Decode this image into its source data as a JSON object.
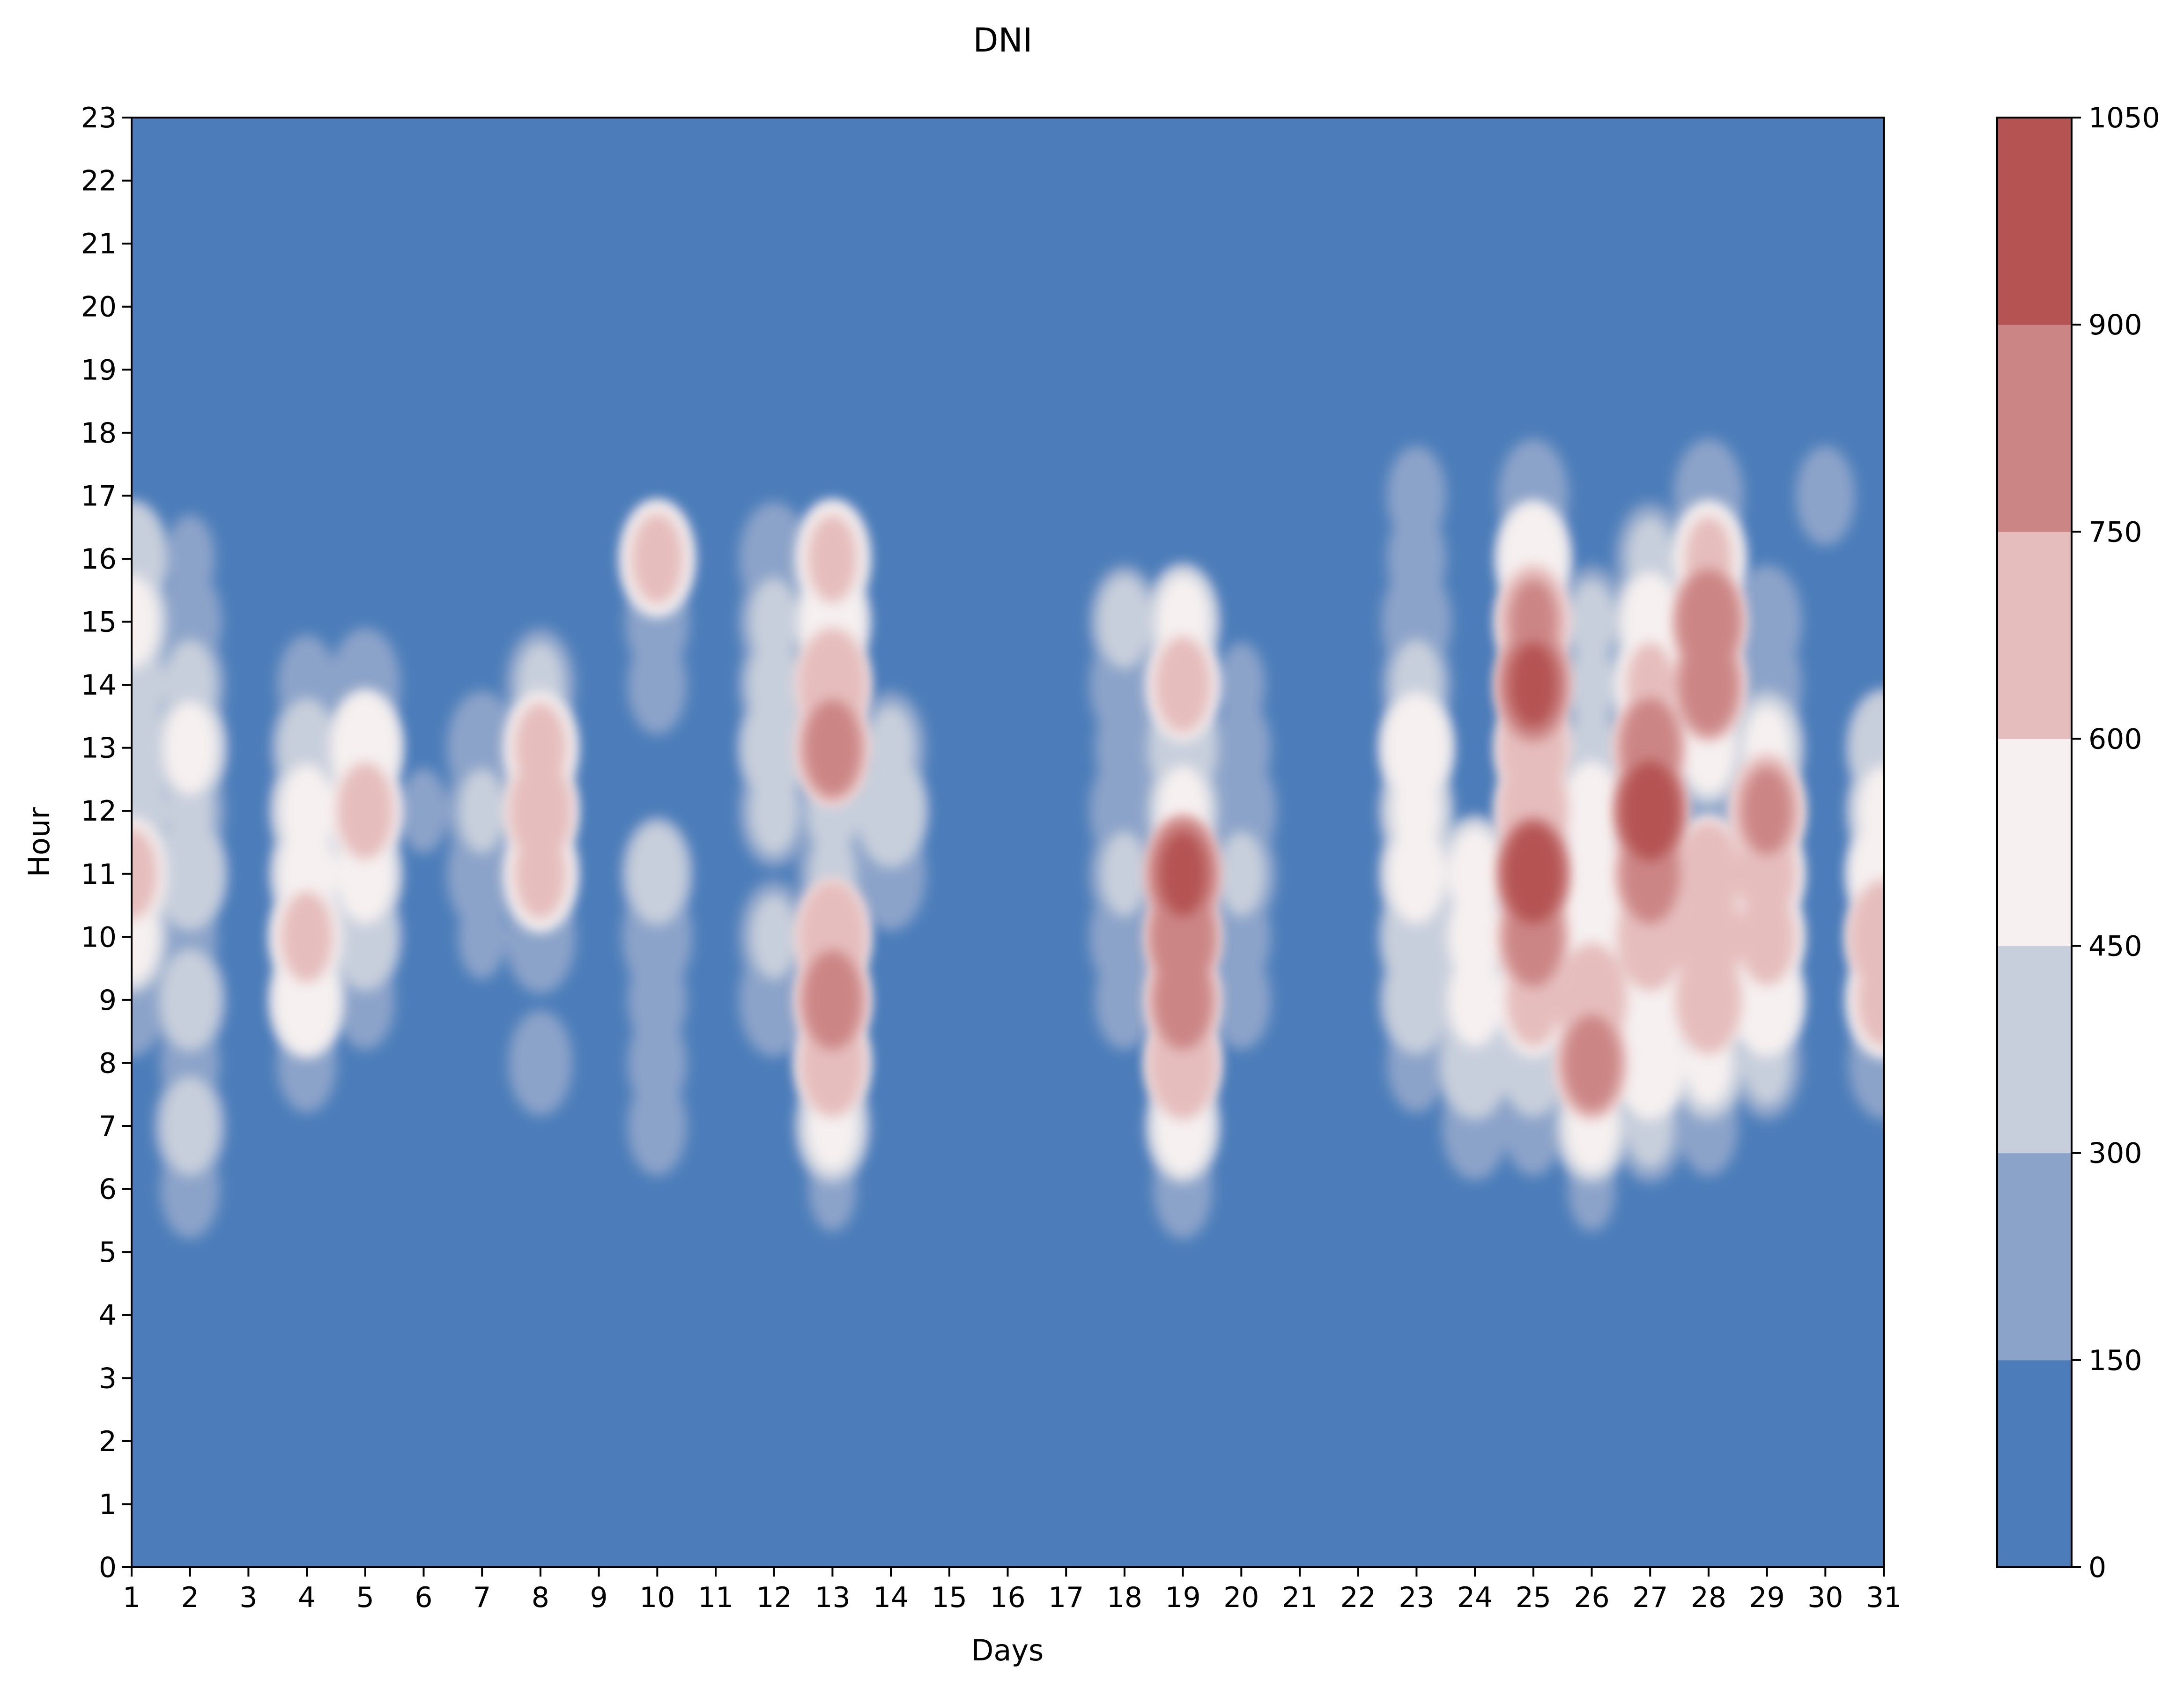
{
  "chart_data": {
    "type": "contour",
    "title": "DNI",
    "xlabel": "Days",
    "ylabel": "Hour",
    "xlim": [
      1,
      31
    ],
    "ylim": [
      0,
      23
    ],
    "x_ticks": [
      "1",
      "2",
      "3",
      "4",
      "5",
      "6",
      "7",
      "8",
      "9",
      "10",
      "11",
      "12",
      "13",
      "14",
      "15",
      "16",
      "17",
      "18",
      "19",
      "20",
      "21",
      "22",
      "23",
      "24",
      "25",
      "26",
      "27",
      "28",
      "29",
      "30",
      "31"
    ],
    "y_ticks": [
      "0",
      "1",
      "2",
      "3",
      "4",
      "5",
      "6",
      "7",
      "8",
      "9",
      "10",
      "11",
      "12",
      "13",
      "14",
      "15",
      "16",
      "17",
      "18",
      "19",
      "20",
      "21",
      "22",
      "23"
    ],
    "colorbar": {
      "levels": [
        0,
        150,
        300,
        450,
        600,
        750,
        900,
        1050
      ],
      "tick_labels": [
        "0",
        "150",
        "300",
        "450",
        "600",
        "750",
        "900",
        "1050"
      ],
      "colors": [
        "#4c7dba",
        "#8ca3c9",
        "#c8cfdc",
        "#f6f0f0",
        "#e6bdbd",
        "#cc8585",
        "#b55353"
      ]
    },
    "hours": [
      6,
      7,
      8,
      9,
      10,
      11,
      12,
      13,
      14,
      15,
      16,
      17
    ],
    "series": [
      {
        "day": 1,
        "values": [
          0,
          0,
          0,
          250,
          480,
          620,
          420,
          380,
          380,
          480,
          420,
          0
        ]
      },
      {
        "day": 2,
        "values": [
          200,
          350,
          200,
          360,
          180,
          440,
          300,
          480,
          320,
          220,
          160,
          0
        ]
      },
      {
        "day": 3,
        "values": [
          0,
          0,
          0,
          0,
          0,
          50,
          100,
          50,
          0,
          0,
          0,
          0
        ]
      },
      {
        "day": 4,
        "values": [
          0,
          0,
          200,
          540,
          620,
          500,
          480,
          350,
          200,
          0,
          0,
          0
        ]
      },
      {
        "day": 5,
        "values": [
          0,
          0,
          0,
          200,
          380,
          500,
          640,
          560,
          250,
          0,
          0,
          0
        ]
      },
      {
        "day": 6,
        "values": [
          0,
          0,
          0,
          0,
          0,
          100,
          150,
          50,
          0,
          0,
          0,
          0
        ]
      },
      {
        "day": 7,
        "values": [
          0,
          0,
          0,
          0,
          150,
          280,
          300,
          250,
          0,
          0,
          0,
          0
        ]
      },
      {
        "day": 8,
        "values": [
          0,
          0,
          220,
          0,
          250,
          620,
          670,
          620,
          300,
          0,
          0,
          0
        ]
      },
      {
        "day": 9,
        "values": [
          0,
          0,
          0,
          0,
          0,
          0,
          0,
          0,
          0,
          0,
          0,
          0
        ]
      },
      {
        "day": 10,
        "values": [
          0,
          200,
          200,
          200,
          250,
          360,
          0,
          0,
          200,
          220,
          620,
          0
        ]
      },
      {
        "day": 11,
        "values": [
          0,
          0,
          0,
          0,
          0,
          0,
          0,
          0,
          0,
          0,
          0,
          0
        ]
      },
      {
        "day": 12,
        "values": [
          0,
          0,
          0,
          250,
          300,
          0,
          310,
          380,
          330,
          310,
          250,
          0
        ]
      },
      {
        "day": 13,
        "values": [
          150,
          470,
          680,
          800,
          700,
          300,
          320,
          790,
          720,
          540,
          610,
          0
        ]
      },
      {
        "day": 14,
        "values": [
          0,
          0,
          0,
          0,
          0,
          250,
          400,
          300,
          0,
          0,
          0,
          0
        ]
      },
      {
        "day": 18,
        "values": [
          0,
          0,
          0,
          200,
          250,
          300,
          250,
          200,
          250,
          330,
          0,
          0
        ]
      },
      {
        "day": 19,
        "values": [
          200,
          500,
          700,
          800,
          830,
          900,
          470,
          400,
          640,
          480,
          0,
          0
        ]
      },
      {
        "day": 20,
        "values": [
          0,
          0,
          0,
          200,
          200,
          300,
          250,
          200,
          150,
          0,
          0,
          0
        ]
      },
      {
        "day": 23,
        "values": [
          0,
          0,
          200,
          380,
          430,
          500,
          460,
          540,
          320,
          250,
          200,
          200
        ]
      },
      {
        "day": 24,
        "values": [
          0,
          230,
          400,
          480,
          480,
          480,
          0,
          0,
          0,
          0,
          0,
          0
        ]
      },
      {
        "day": 25,
        "values": [
          0,
          200,
          380,
          630,
          800,
          950,
          700,
          710,
          900,
          750,
          550,
          250
        ]
      },
      {
        "day": 26,
        "values": [
          150,
          480,
          790,
          700,
          570,
          500,
          500,
          300,
          300,
          300,
          0,
          0
        ]
      },
      {
        "day": 27,
        "values": [
          0,
          300,
          560,
          500,
          680,
          800,
          950,
          800,
          600,
          500,
          300,
          0
        ]
      },
      {
        "day": 28,
        "values": [
          0,
          200,
          450,
          680,
          690,
          670,
          250,
          480,
          800,
          820,
          600,
          250
        ]
      },
      {
        "day": 29,
        "values": [
          0,
          0,
          300,
          580,
          640,
          650,
          760,
          450,
          250,
          250,
          0,
          0
        ]
      },
      {
        "day": 30,
        "values": [
          0,
          0,
          0,
          0,
          0,
          0,
          0,
          0,
          0,
          0,
          0,
          200
        ]
      },
      {
        "day": 31,
        "values": [
          0,
          0,
          250,
          630,
          700,
          550,
          470,
          400,
          0,
          0,
          0,
          0
        ]
      }
    ]
  }
}
